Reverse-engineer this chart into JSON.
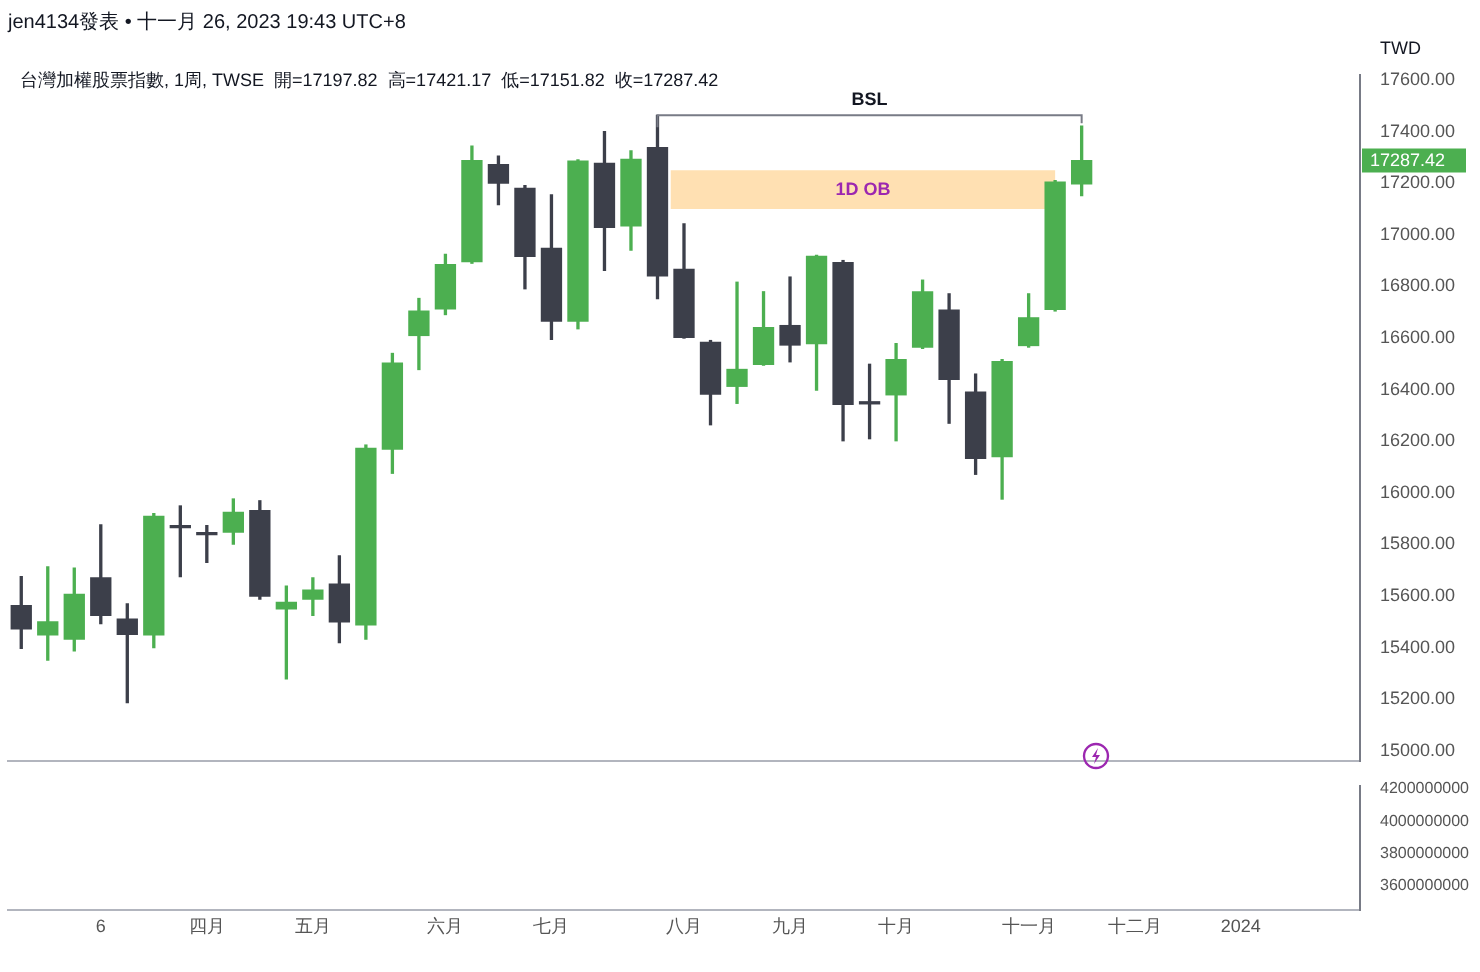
{
  "chart_data": [
    {
      "type": "candlestick",
      "title": "台灣加權股票指數, 1周, TWSE  開=17197.82  高=17421.17  低=17151.82  收=17287.42",
      "ylabel": "TWD",
      "annotations": [
        "jen4134發表 • 十一月 26, 2023 19:43 UTC+8",
        "17287.42"
      ],
      "categories": [
        null,
        null,
        null,
        null,
        null,
        null,
        null,
        null,
        null,
        null,
        null,
        null,
        null,
        null,
        null,
        null,
        null,
        null,
        null,
        null,
        null,
        null,
        null,
        null,
        null,
        null,
        null,
        null,
        null,
        null,
        null,
        null,
        null,
        null,
        null,
        null,
        null,
        null,
        null,
        null,
        null,
        null,
        null,
        null,
        null,
        null,
        null,
        null,
        null,
        null,
        null
      ],
      "ohlc": [
        [
          15563,
          15675,
          15397,
          15473
        ],
        [
          15450,
          15713,
          15352,
          15500
        ],
        [
          15433,
          15708,
          15388,
          15606
        ],
        [
          15670,
          15876,
          15493,
          15525
        ],
        [
          15510,
          15570,
          15187,
          15452
        ],
        [
          15450,
          15919,
          15400,
          15909
        ],
        [
          15870,
          15949,
          15675,
          15865
        ],
        [
          15840,
          15873,
          15731,
          15838
        ],
        [
          15848,
          15976,
          15801,
          15924
        ],
        [
          15931,
          15969,
          15588,
          15600
        ],
        [
          15550,
          15638,
          15279,
          15575
        ],
        [
          15588,
          15670,
          15525,
          15623
        ],
        [
          15646,
          15756,
          15420,
          15500
        ],
        [
          15488,
          16185,
          15433,
          16172
        ],
        [
          16170,
          16540,
          16076,
          16503
        ],
        [
          16610,
          16753,
          16478,
          16704
        ],
        [
          16713,
          16924,
          16691,
          16884
        ],
        [
          16896,
          17343,
          16890,
          17287
        ],
        [
          17272,
          17305,
          17117,
          17200
        ],
        [
          17180,
          17190,
          16791,
          16916
        ],
        [
          16947,
          17155,
          16595,
          16666
        ],
        [
          16666,
          17290,
          16636,
          17285
        ],
        [
          17277,
          17400,
          16862,
          17029
        ],
        [
          17035,
          17325,
          16941,
          17292
        ],
        [
          17338,
          17463,
          16753,
          16841
        ],
        [
          16866,
          17042,
          16600,
          16603
        ],
        [
          16583,
          16590,
          16264,
          16383
        ],
        [
          16413,
          16816,
          16347,
          16478
        ],
        [
          16498,
          16779,
          16495,
          16640
        ],
        [
          16648,
          16836,
          16508,
          16573
        ],
        [
          16578,
          16920,
          16398,
          16916
        ],
        [
          16892,
          16900,
          16202,
          16343
        ],
        [
          16347,
          16498,
          16210,
          16345
        ],
        [
          16380,
          16578,
          16202,
          16516
        ],
        [
          16565,
          16824,
          16560,
          16779
        ],
        [
          16708,
          16771,
          16270,
          16440
        ],
        [
          16390,
          16460,
          16072,
          16134
        ],
        [
          16140,
          16516,
          15976,
          16508
        ],
        [
          16571,
          16771,
          16565,
          16678
        ],
        [
          16711,
          17210,
          16705,
          17204
        ],
        [
          17197.82,
          17421.17,
          17151.82,
          17287.42
        ],
        null,
        null,
        null,
        null,
        null,
        null,
        null,
        null,
        null,
        null
      ],
      "colors": [
        "#3c3f4a",
        "#4caf50",
        "#4caf50",
        "#3c3f4a",
        "#3c3f4a",
        "#4caf50",
        "#3c3f4a",
        "#3c3f4a",
        "#4caf50",
        "#3c3f4a",
        "#4caf50",
        "#4caf50",
        "#3c3f4a",
        "#4caf50",
        "#4caf50",
        "#4caf50",
        "#4caf50",
        "#4caf50",
        "#3c3f4a",
        "#3c3f4a",
        "#3c3f4a",
        "#4caf50",
        "#3c3f4a",
        "#4caf50",
        "#3c3f4a",
        "#3c3f4a",
        "#3c3f4a",
        "#4caf50",
        "#4caf50",
        "#3c3f4a",
        "#4caf50",
        "#3c3f4a",
        "#3c3f4a",
        "#4caf50",
        "#4caf50",
        "#3c3f4a",
        "#3c3f4a",
        "#4caf50",
        "#4caf50",
        "#4caf50",
        "#4caf50",
        null,
        null,
        null,
        null,
        null,
        null,
        null,
        null,
        null,
        null
      ],
      "ylim": [
        14960,
        17620
      ],
      "yticks": [
        {
          "value": 15000,
          "label": "15000.00"
        },
        {
          "value": 15200,
          "label": "15200.00"
        },
        {
          "value": 15400,
          "label": "15400.00"
        },
        {
          "value": 15600,
          "label": "15600.00"
        },
        {
          "value": 15800,
          "label": "15800.00"
        },
        {
          "value": 16000,
          "label": "16000.00"
        },
        {
          "value": 16200,
          "label": "16200.00"
        },
        {
          "value": 16400,
          "label": "16400.00"
        },
        {
          "value": 16600,
          "label": "16600.00"
        },
        {
          "value": 16800,
          "label": "16800.00"
        },
        {
          "value": 17000,
          "label": "17000.00"
        },
        {
          "value": 17200,
          "label": "17200.00"
        },
        {
          "value": 17400,
          "label": "17400.00"
        },
        {
          "value": 17600,
          "label": "17600.00"
        }
      ],
      "ref_lines": [
        {
          "axis": "y",
          "value": 17463,
          "label": "BSL",
          "color": "#787b86"
        }
      ],
      "bands": [
        {
          "axis": "y",
          "from": 17100,
          "to": 17250,
          "label": "1D OB",
          "color": "#ffe0b2"
        }
      ],
      "tick_labels": "y"
    },
    {
      "type": "bar",
      "categories": [
        null,
        null,
        null,
        "6",
        null,
        null,
        null,
        "四月",
        null,
        null,
        null,
        "五月",
        null,
        null,
        null,
        null,
        "六月",
        null,
        null,
        null,
        "七月",
        null,
        null,
        null,
        null,
        "八月",
        null,
        null,
        null,
        "九月",
        null,
        null,
        null,
        "十月",
        null,
        null,
        null,
        null,
        "十一月",
        null,
        null,
        null,
        "十二月",
        null,
        null,
        null,
        "2024",
        null,
        null,
        null,
        null
      ],
      "values": [
        null,
        null,
        null,
        null,
        null,
        null,
        null,
        null,
        null,
        null,
        null,
        null,
        null,
        null,
        null,
        null,
        null,
        null,
        null,
        null,
        null,
        null,
        null,
        null,
        null,
        null,
        null,
        null,
        null,
        null,
        null,
        null,
        null,
        null,
        null,
        null,
        null,
        null,
        null,
        null,
        null,
        null,
        null,
        null,
        null,
        null,
        null,
        null,
        null,
        null,
        null
      ],
      "ylim": [
        3450000000,
        4220000000
      ],
      "yticks": [
        3600000000,
        3800000000,
        4000000000,
        4200000000
      ]
    }
  ]
}
